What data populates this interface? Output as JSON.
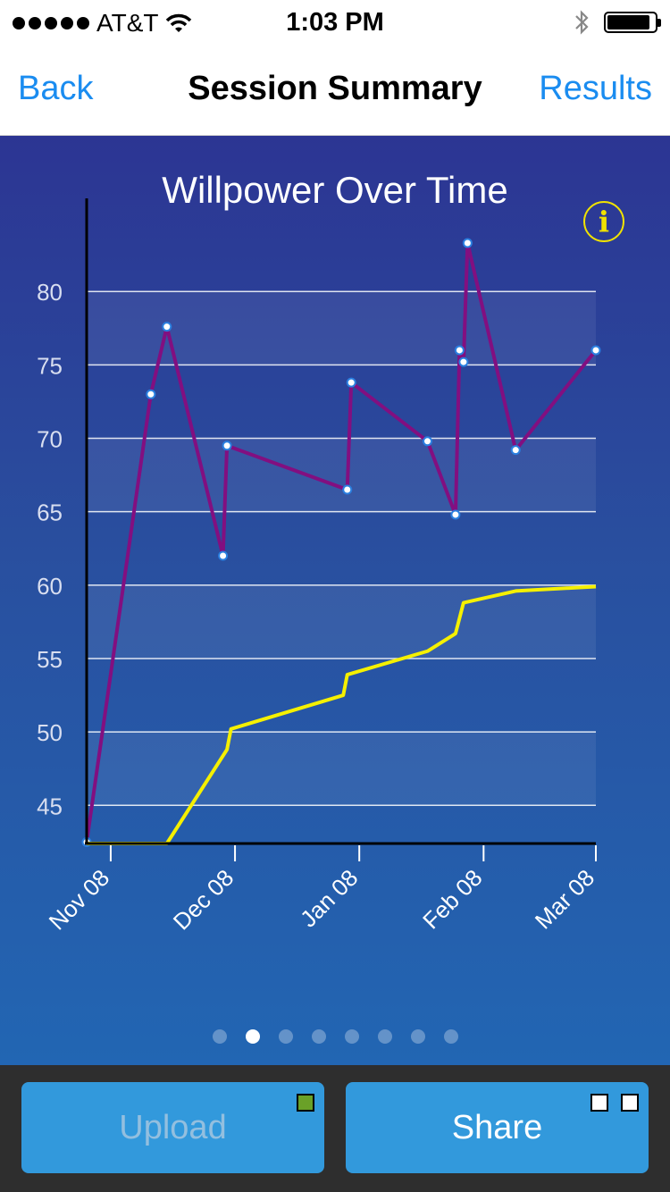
{
  "status_bar": {
    "carrier": "AT&T",
    "time": "1:03 PM",
    "signal_icon": "signal-dots-icon",
    "wifi_icon": "wifi-icon",
    "bluetooth_icon": "bluetooth-icon",
    "battery_icon": "battery-icon",
    "battery_level": 0.9
  },
  "nav": {
    "back": "Back",
    "title": "Session Summary",
    "results": "Results"
  },
  "info_icon": {
    "name": "info-icon",
    "glyph": "i",
    "color": "#f0e200"
  },
  "chart_data": {
    "type": "line",
    "title": "Willpower Over Time",
    "y_ticks": [
      45,
      50,
      55,
      60,
      65,
      70,
      75,
      80
    ],
    "x_ticks": [
      "Nov 08",
      "Dec 08",
      "Jan 08",
      "Feb 08",
      "Mar 08"
    ],
    "x_tick_days": [
      6,
      37,
      68,
      99,
      127
    ],
    "x_range_days": [
      0,
      127
    ],
    "ylim": [
      42.4,
      83.3
    ],
    "grid": true,
    "legend": "none",
    "series": [
      {
        "color": "#820f80",
        "markers": true,
        "x_days": [
          0,
          16,
          20,
          34,
          35,
          65,
          66,
          85,
          92,
          93,
          94,
          95,
          107,
          127
        ],
        "values": [
          42.5,
          73.0,
          77.6,
          62.0,
          69.5,
          66.5,
          73.8,
          69.8,
          64.8,
          76.0,
          75.2,
          83.3,
          69.2,
          76.0
        ]
      },
      {
        "color": "#f5f000",
        "markers": false,
        "x_days": [
          0,
          20,
          35,
          36,
          64,
          65,
          85,
          92,
          94,
          107,
          127
        ],
        "values": [
          42.4,
          42.4,
          48.8,
          50.2,
          52.5,
          53.9,
          55.5,
          56.7,
          58.8,
          59.6,
          59.9
        ]
      }
    ]
  },
  "pager": {
    "count": 8,
    "active_index": 1
  },
  "toolbar": {
    "upload": "Upload",
    "share": "Share",
    "upload_indicator_color": "#6aa128"
  }
}
